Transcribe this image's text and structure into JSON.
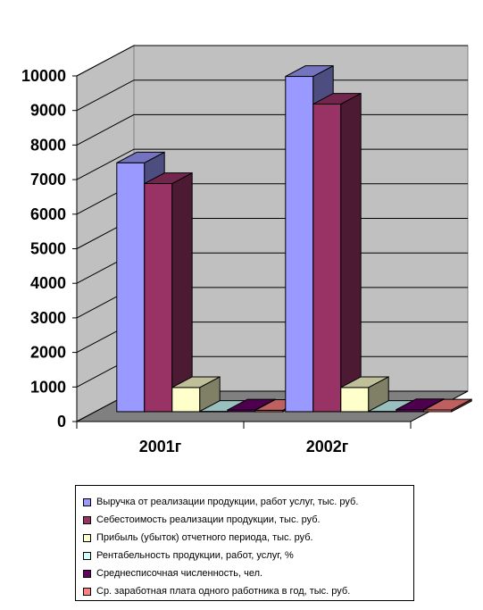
{
  "chart_data": {
    "type": "bar",
    "categories": [
      "2001г",
      "2002г"
    ],
    "series": [
      {
        "name": "Выручка от реализации продукции, работ услуг, тыс. руб.",
        "color": "#9999ff",
        "values": [
          7200,
          9700
        ]
      },
      {
        "name": "Себестоимость реализации продукции, тыс. руб.",
        "color": "#993366",
        "values": [
          6600,
          8900
        ]
      },
      {
        "name": "Прибыль (убыток) отчетного периода, тыс. руб.",
        "color": "#ffffcc",
        "values": [
          700,
          700
        ]
      },
      {
        "name": "Рентабельность продукции, работ, услуг, %",
        "color": "#ccffff",
        "values": [
          10,
          10
        ]
      },
      {
        "name": "Среднесписочная численность, чел.",
        "color": "#660066",
        "values": [
          50,
          60
        ]
      },
      {
        "name": "Ср. заработная плата одного работника в год, тыс. руб.",
        "color": "#ff8080",
        "values": [
          40,
          50
        ]
      }
    ],
    "yticks": [
      "0",
      "1000",
      "2000",
      "3000",
      "4000",
      "5000",
      "6000",
      "7000",
      "8000",
      "9000",
      "10000"
    ],
    "ylim": [
      0,
      10000
    ],
    "grid": true,
    "legend_position": "bottom",
    "wall_color": "#c0c0c0",
    "floor_color": "#808080"
  }
}
